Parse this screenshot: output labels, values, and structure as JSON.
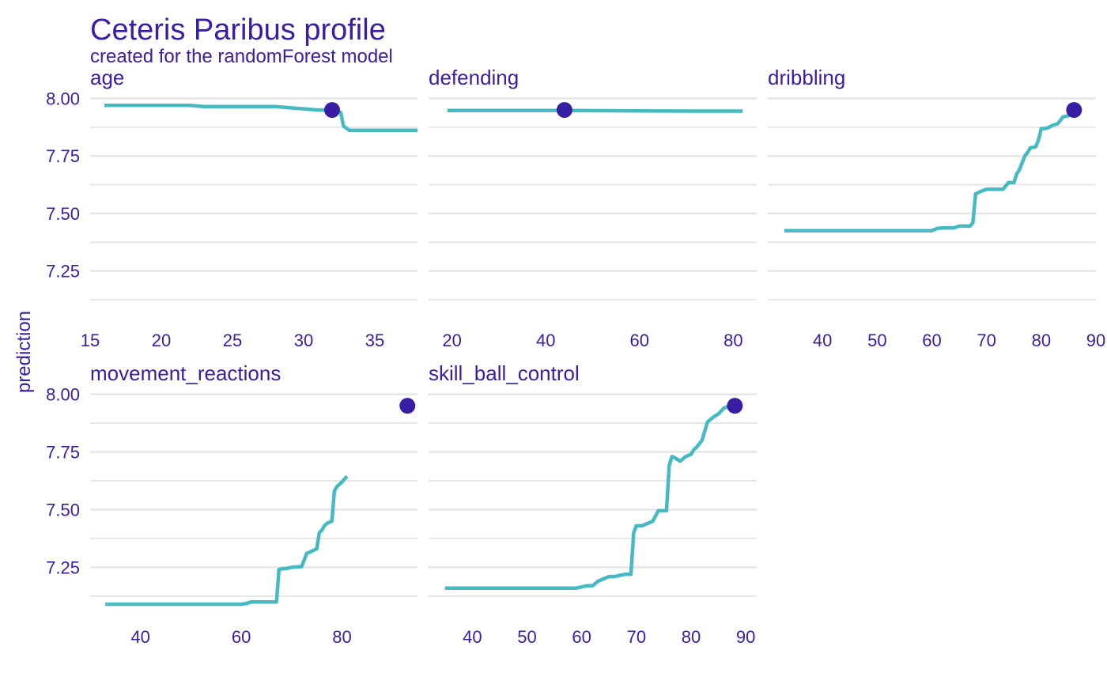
{
  "chart_data": {
    "type": "line",
    "title": "Ceteris Paribus profile",
    "subtitle": "created for the randomForest model",
    "ylabel": "prediction",
    "ylim": [
      7.08,
      8.05
    ],
    "yticks": [
      7.25,
      7.5,
      7.75,
      8.0
    ],
    "ytick_labels": [
      "7.25",
      "7.50",
      "7.75",
      "8.00"
    ],
    "grid": true,
    "colors": {
      "line": "#46BAC2",
      "point": "#371EA3",
      "text": "#371EA3",
      "grid": "#E6E6E6"
    },
    "panels": [
      {
        "variable": "age",
        "xlim": [
          15,
          38
        ],
        "xticks": [
          15,
          20,
          25,
          30,
          35
        ],
        "xtick_labels": [
          "15",
          "20",
          "25",
          "30",
          "35"
        ],
        "observation": {
          "x": 32,
          "y": 7.95
        },
        "x": [
          16,
          18,
          20,
          22,
          23,
          24,
          26,
          28,
          29,
          30,
          31,
          31.5,
          32,
          32.6,
          32.8,
          33.2,
          34,
          36,
          38
        ],
        "y": [
          7.97,
          7.97,
          7.97,
          7.97,
          7.965,
          7.965,
          7.965,
          7.965,
          7.96,
          7.955,
          7.95,
          7.95,
          7.95,
          7.94,
          7.88,
          7.862,
          7.862,
          7.862,
          7.862
        ]
      },
      {
        "variable": "defending",
        "xlim": [
          15,
          85
        ],
        "xticks": [
          20,
          40,
          60,
          80
        ],
        "xtick_labels": [
          "20",
          "40",
          "60",
          "80"
        ],
        "observation": {
          "x": 44,
          "y": 7.95
        },
        "x": [
          19,
          30,
          44,
          60,
          70,
          82
        ],
        "y": [
          7.948,
          7.948,
          7.948,
          7.946,
          7.945,
          7.945
        ]
      },
      {
        "variable": "dribbling",
        "xlim": [
          30,
          90
        ],
        "xticks": [
          40,
          50,
          60,
          70,
          80,
          90
        ],
        "xtick_labels": [
          "40",
          "50",
          "60",
          "70",
          "80",
          "90"
        ],
        "observation": {
          "x": 86,
          "y": 7.95
        },
        "x": [
          33,
          50,
          60,
          61,
          62,
          64,
          65,
          66,
          67,
          67.5,
          68,
          69,
          70,
          71,
          73,
          74,
          75,
          75.5,
          76,
          77,
          77.5,
          78,
          79,
          79.5,
          80,
          81,
          82,
          83,
          84,
          85,
          86,
          87
        ],
        "y": [
          7.425,
          7.425,
          7.425,
          7.435,
          7.437,
          7.437,
          7.445,
          7.445,
          7.445,
          7.46,
          7.585,
          7.597,
          7.605,
          7.605,
          7.605,
          7.634,
          7.634,
          7.672,
          7.69,
          7.75,
          7.765,
          7.785,
          7.79,
          7.82,
          7.868,
          7.87,
          7.882,
          7.89,
          7.92,
          7.925,
          7.95,
          7.95
        ]
      },
      {
        "variable": "movement_reactions",
        "xlim": [
          30,
          95
        ],
        "xticks": [
          40,
          60,
          80
        ],
        "xtick_labels": [
          "40",
          "60",
          "80"
        ],
        "observation": {
          "x": 93,
          "y": 7.95
        },
        "x": [
          33,
          50,
          60,
          61,
          62,
          64,
          66,
          67,
          67.5,
          68,
          69,
          70,
          72,
          73,
          74,
          75,
          75.5,
          76,
          76.5,
          77,
          78,
          78.5,
          79,
          80,
          81
        ],
        "y": [
          7.09,
          7.09,
          7.09,
          7.093,
          7.1,
          7.1,
          7.1,
          7.1,
          7.24,
          7.243,
          7.245,
          7.25,
          7.253,
          7.31,
          7.32,
          7.33,
          7.4,
          7.41,
          7.43,
          7.44,
          7.45,
          7.58,
          7.6,
          7.62,
          7.645
        ]
      },
      {
        "variable": "skill_ball_control",
        "xlim": [
          32,
          92
        ],
        "xticks": [
          40,
          50,
          60,
          70,
          80,
          90
        ],
        "xtick_labels": [
          "40",
          "50",
          "60",
          "70",
          "80",
          "90"
        ],
        "observation": {
          "x": 88,
          "y": 7.95
        },
        "x": [
          35,
          50,
          59,
          60,
          61,
          62,
          63,
          64,
          65,
          66,
          67,
          68,
          69,
          69.5,
          70,
          71,
          72,
          73,
          74,
          75,
          75.5,
          76,
          76.5,
          77,
          78,
          79,
          80,
          80.5,
          81,
          82,
          83,
          84,
          85,
          86,
          87,
          88
        ],
        "y": [
          7.16,
          7.16,
          7.16,
          7.165,
          7.17,
          7.17,
          7.19,
          7.2,
          7.21,
          7.21,
          7.215,
          7.22,
          7.22,
          7.4,
          7.43,
          7.43,
          7.44,
          7.45,
          7.495,
          7.495,
          7.495,
          7.69,
          7.73,
          7.725,
          7.71,
          7.73,
          7.74,
          7.76,
          7.77,
          7.8,
          7.88,
          7.9,
          7.915,
          7.94,
          7.95,
          7.95
        ]
      }
    ]
  }
}
